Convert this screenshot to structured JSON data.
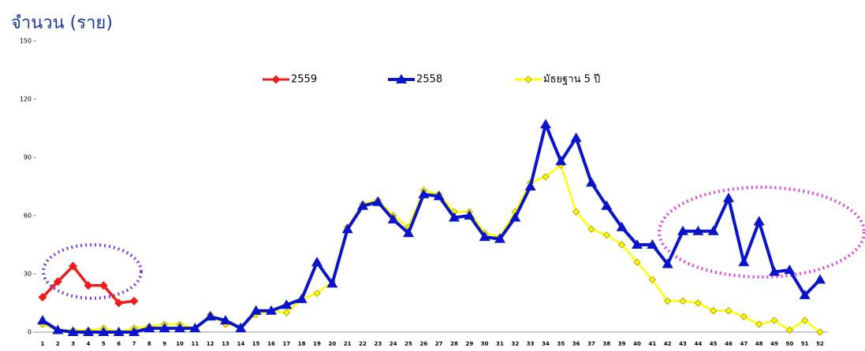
{
  "chart_data": {
    "type": "line",
    "title": "จำนวน (ราย)",
    "categories": [
      1,
      2,
      3,
      4,
      5,
      6,
      7,
      8,
      9,
      10,
      11,
      12,
      13,
      14,
      15,
      16,
      17,
      18,
      19,
      20,
      21,
      22,
      23,
      24,
      25,
      26,
      27,
      28,
      29,
      30,
      31,
      32,
      33,
      34,
      35,
      36,
      37,
      38,
      39,
      40,
      41,
      42,
      43,
      44,
      45,
      46,
      47,
      48,
      49,
      50,
      51,
      52
    ],
    "ylim": [
      0,
      150
    ],
    "yticks": [
      0,
      30,
      60,
      90,
      120,
      150
    ],
    "grid": false,
    "series": [
      {
        "name": "2559",
        "color": "#ee1c1c",
        "marker": "diamond",
        "values": [
          18,
          26,
          34,
          24,
          24,
          15,
          16,
          null,
          null,
          null,
          null,
          null,
          null,
          null,
          null,
          null,
          null,
          null,
          null,
          null,
          null,
          null,
          null,
          null,
          null,
          null,
          null,
          null,
          null,
          null,
          null,
          null,
          null,
          null,
          null,
          null,
          null,
          null,
          null,
          null,
          null,
          null,
          null,
          null,
          null,
          null,
          null,
          null,
          null,
          null,
          null,
          null
        ]
      },
      {
        "name": "2558",
        "color": "#0a14c8",
        "marker": "triangle",
        "values": [
          6,
          1,
          0,
          0,
          0,
          0,
          0,
          2,
          2,
          2,
          2,
          8,
          6,
          2,
          11,
          11,
          14,
          17,
          36,
          25,
          53,
          65,
          67,
          58,
          51,
          71,
          70,
          59,
          60,
          49,
          48,
          59,
          75,
          107,
          88,
          100,
          77,
          65,
          54,
          45,
          45,
          35,
          52,
          52,
          52,
          69,
          36,
          57,
          31,
          32,
          19,
          27
        ]
      },
      {
        "name": "มัธยฐาน 5 ปี",
        "color": "#ffff00",
        "marker": "diamond-open",
        "values": [
          4,
          1,
          1,
          1,
          2,
          0,
          2,
          3,
          4,
          4,
          2,
          9,
          4,
          3,
          9,
          11,
          10,
          17,
          20,
          26,
          54,
          66,
          68,
          60,
          54,
          73,
          71,
          62,
          62,
          51,
          49,
          62,
          77,
          80,
          86,
          62,
          53,
          50,
          45,
          36,
          27,
          16,
          16,
          15,
          11,
          11,
          8,
          4,
          6,
          1,
          6,
          0
        ]
      }
    ]
  }
}
